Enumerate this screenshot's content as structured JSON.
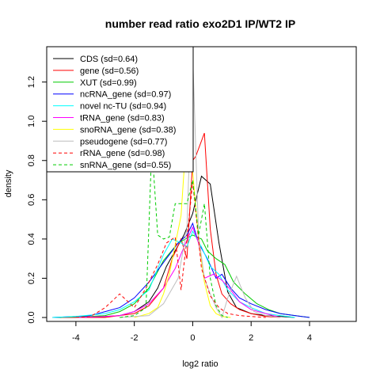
{
  "chart_data": {
    "type": "line",
    "title": "number read ratio exo2D1 IP/WT2 IP",
    "xlabel": "log2 ratio",
    "ylabel": "density",
    "xlim": [
      -5,
      5.6
    ],
    "ylim": [
      -0.02,
      1.38
    ],
    "xticks": [
      -4,
      -2,
      0,
      2,
      4
    ],
    "xtick_labels": [
      "-4",
      "-2",
      "0",
      "2",
      "4"
    ],
    "yticks": [
      0.0,
      0.2,
      0.4,
      0.6,
      0.8,
      1.0,
      1.2
    ],
    "ytick_labels": [
      "0.0",
      "0.2",
      "0.4",
      "0.6",
      "0.8",
      "1.0",
      "1.2"
    ],
    "legend_position": "top-left",
    "series": [
      {
        "name": "CDS (sd=0.64)",
        "color": "#000000",
        "dash": "solid",
        "x": [
          -4.8,
          -4.0,
          -3.0,
          -2.5,
          -2.0,
          -1.5,
          -1.2,
          -0.9,
          -0.6,
          -0.3,
          0.0,
          0.3,
          0.6,
          0.9,
          1.2,
          1.5,
          2.0,
          2.5,
          3.0,
          3.5
        ],
        "y": [
          0.0,
          0.0,
          0.005,
          0.01,
          0.03,
          0.08,
          0.15,
          0.26,
          0.34,
          0.42,
          0.53,
          0.72,
          0.68,
          0.38,
          0.13,
          0.05,
          0.02,
          0.01,
          0.005,
          0.0
        ]
      },
      {
        "name": "gene (sd=0.56)",
        "color": "#ff0000",
        "dash": "solid",
        "x": [
          -4.5,
          -3.0,
          -2.0,
          -1.5,
          -1.0,
          -0.7,
          -0.4,
          -0.2,
          0.0,
          0.1,
          0.2,
          0.4,
          0.6,
          0.8,
          1.0,
          1.3,
          1.6,
          2.0,
          2.5,
          3.0
        ],
        "y": [
          0.0,
          0.0,
          0.02,
          0.06,
          0.15,
          0.3,
          0.4,
          0.3,
          0.8,
          0.82,
          0.86,
          0.94,
          0.45,
          0.22,
          0.12,
          0.07,
          0.04,
          0.02,
          0.005,
          0.0
        ]
      },
      {
        "name": "XUT (sd=0.99)",
        "color": "#00cc00",
        "dash": "solid",
        "x": [
          -4.8,
          -3.5,
          -3.0,
          -2.5,
          -2.0,
          -1.5,
          -1.0,
          -0.5,
          0.0,
          0.3,
          0.5,
          0.8,
          1.1,
          1.4,
          1.8,
          2.2,
          2.6,
          3.0,
          3.5,
          4.0
        ],
        "y": [
          0.0,
          0.005,
          0.01,
          0.03,
          0.07,
          0.15,
          0.29,
          0.38,
          0.42,
          0.4,
          0.34,
          0.3,
          0.27,
          0.18,
          0.12,
          0.07,
          0.04,
          0.02,
          0.01,
          0.0
        ]
      },
      {
        "name": "ncRNA_gene (sd=0.97)",
        "color": "#0000ff",
        "dash": "solid",
        "x": [
          -4.8,
          -4.0,
          -3.5,
          -3.0,
          -2.5,
          -2.0,
          -1.5,
          -1.0,
          -0.5,
          -0.2,
          0.0,
          0.2,
          0.5,
          0.8,
          1.0,
          1.3,
          1.6,
          2.0,
          2.5,
          3.0,
          3.5,
          4.0
        ],
        "y": [
          0.0,
          0.005,
          0.01,
          0.03,
          0.05,
          0.1,
          0.18,
          0.28,
          0.38,
          0.42,
          0.48,
          0.38,
          0.3,
          0.2,
          0.22,
          0.15,
          0.1,
          0.07,
          0.04,
          0.02,
          0.01,
          0.0
        ]
      },
      {
        "name": "novel nc-TU (sd=0.94)",
        "color": "#00ffff",
        "dash": "solid",
        "x": [
          -4.8,
          -4.0,
          -3.0,
          -2.5,
          -2.0,
          -1.5,
          -1.0,
          -0.7,
          -0.4,
          -0.2,
          0.0,
          0.3,
          0.6,
          0.9,
          1.2,
          1.6,
          2.0,
          2.5,
          3.0,
          3.5
        ],
        "y": [
          0.0,
          0.005,
          0.02,
          0.04,
          0.08,
          0.14,
          0.32,
          0.4,
          0.38,
          0.36,
          0.44,
          0.36,
          0.26,
          0.22,
          0.14,
          0.08,
          0.05,
          0.02,
          0.01,
          0.0
        ]
      },
      {
        "name": "tRNA_gene (sd=0.83)",
        "color": "#ff00ff",
        "dash": "solid",
        "x": [
          -4.0,
          -3.0,
          -2.5,
          -2.0,
          -1.5,
          -1.0,
          -0.6,
          -0.3,
          0.0,
          0.2,
          0.4,
          0.7,
          1.0,
          1.3,
          1.6,
          2.0,
          2.5,
          3.0
        ],
        "y": [
          0.0,
          0.005,
          0.01,
          0.03,
          0.07,
          0.15,
          0.25,
          0.36,
          0.46,
          0.38,
          0.2,
          0.22,
          0.19,
          0.14,
          0.08,
          0.04,
          0.02,
          0.0
        ]
      },
      {
        "name": "snoRNA_gene (sd=0.38)",
        "color": "#ffff00",
        "dash": "solid",
        "x": [
          -2.0,
          -1.5,
          -1.2,
          -1.0,
          -0.8,
          -0.6,
          -0.4,
          -0.2,
          0.0,
          0.2,
          0.4,
          0.6,
          0.8,
          1.0,
          1.3
        ],
        "y": [
          0.0,
          0.02,
          0.05,
          0.12,
          0.22,
          0.37,
          0.52,
          0.97,
          0.74,
          0.4,
          0.18,
          0.06,
          0.02,
          0.005,
          0.0
        ]
      },
      {
        "name": "pseudogene (sd=0.77)",
        "color": "#bebebe",
        "dash": "solid",
        "x": [
          -2.5,
          -1.5,
          -1.0,
          -0.5,
          -0.2,
          0.0,
          0.2,
          0.4,
          0.6,
          0.8,
          1.0,
          1.2,
          1.5,
          1.8,
          2.1,
          2.5,
          3.0
        ],
        "y": [
          0.0,
          0.01,
          0.07,
          0.2,
          0.45,
          1.34,
          0.42,
          0.2,
          0.12,
          0.05,
          0.0,
          0.1,
          0.21,
          0.1,
          0.03,
          0.01,
          0.0
        ]
      },
      {
        "name": "rRNA_gene (sd=0.98)",
        "color": "#ff0000",
        "dash": "dashed",
        "x": [
          -4.0,
          -3.5,
          -3.0,
          -2.5,
          -2.0,
          -1.6,
          -1.2,
          -0.9,
          -0.6,
          -0.4,
          -0.2,
          0.0,
          0.3,
          0.6,
          0.9,
          1.2,
          1.6,
          2.0,
          2.5
        ],
        "y": [
          0.0,
          0.005,
          0.05,
          0.12,
          0.05,
          0.15,
          0.27,
          0.38,
          0.41,
          0.14,
          0.4,
          0.69,
          0.25,
          0.11,
          0.05,
          0.02,
          0.01,
          0.005,
          0.0
        ]
      },
      {
        "name": "snRNA_gene (sd=0.55)",
        "color": "#00cc00",
        "dash": "dashed",
        "x": [
          -2.5,
          -2.0,
          -1.6,
          -1.4,
          -1.2,
          -1.0,
          -0.8,
          -0.6,
          -0.4,
          -0.2,
          0.0,
          0.2,
          0.4,
          0.6,
          0.8,
          1.0,
          1.2
        ],
        "y": [
          0.0,
          0.01,
          0.05,
          0.88,
          0.42,
          0.4,
          0.41,
          0.58,
          0.58,
          0.58,
          0.7,
          0.42,
          0.58,
          0.2,
          0.06,
          0.01,
          0.0
        ]
      }
    ]
  }
}
